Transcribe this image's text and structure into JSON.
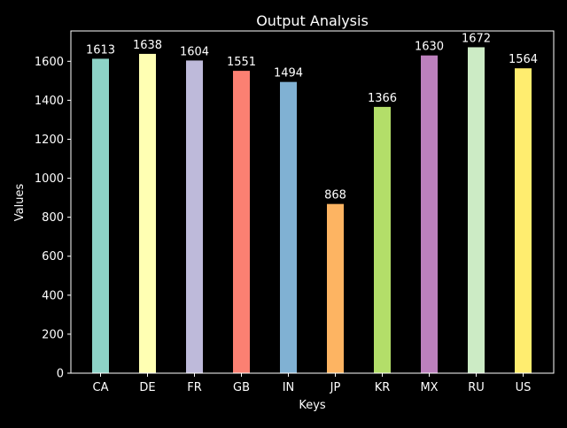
{
  "chart_data": {
    "type": "bar",
    "title": "Output Analysis",
    "xlabel": "Keys",
    "ylabel": "Values",
    "categories": [
      "CA",
      "DE",
      "FR",
      "GB",
      "IN",
      "JP",
      "KR",
      "MX",
      "RU",
      "US"
    ],
    "values": [
      1613,
      1638,
      1604,
      1551,
      1494,
      868,
      1366,
      1630,
      1672,
      1564
    ],
    "colors": [
      "#8dd3c7",
      "#ffffb3",
      "#bebada",
      "#fb8072",
      "#80b1d3",
      "#fdb462",
      "#b3de69",
      "#bc80bd",
      "#ccebc5",
      "#ffed6f"
    ],
    "ylim": [
      0,
      1755.6
    ],
    "yticks": [
      0,
      200,
      400,
      600,
      800,
      1000,
      1200,
      1400,
      1600
    ],
    "grid": false,
    "legend": "none",
    "show_data_labels": true
  }
}
